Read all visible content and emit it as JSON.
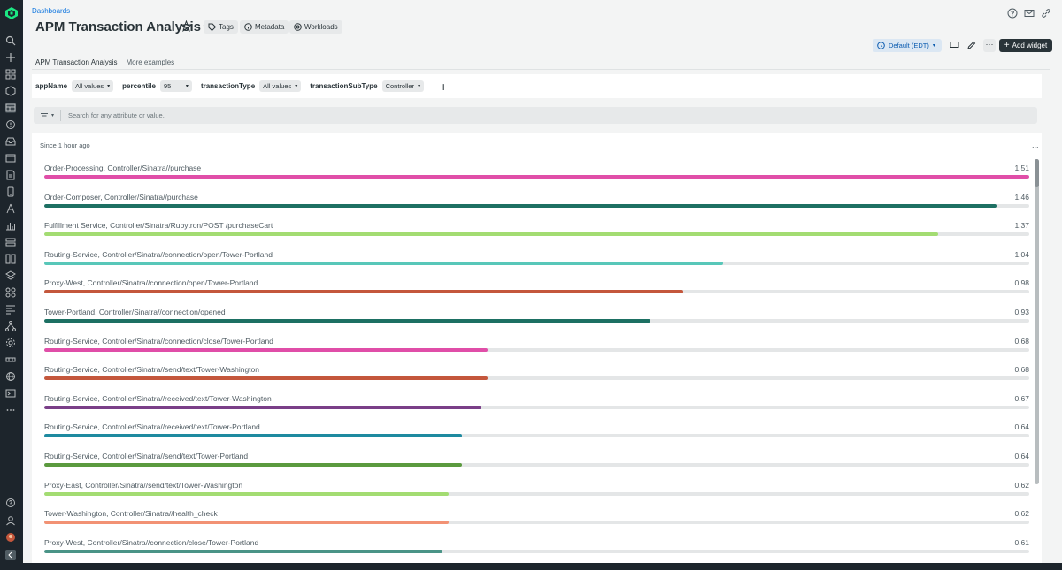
{
  "breadcrumb": "Dashboards",
  "page_title": "APM Transaction Analysis",
  "header_pills": [
    {
      "label": "Tags",
      "icon": "tag-icon"
    },
    {
      "label": "Metadata",
      "icon": "info-icon"
    },
    {
      "label": "Workloads",
      "icon": "workloads-icon"
    }
  ],
  "toolbar": {
    "timezone_label": "Default (EDT)",
    "add_widget_label": "Add widget",
    "more_label": "···"
  },
  "tabs": [
    {
      "label": "APM Transaction Analysis",
      "active": true
    },
    {
      "label": "More examples",
      "active": false
    }
  ],
  "variables": [
    {
      "name": "appName",
      "value": "All values"
    },
    {
      "name": "percentile",
      "value": "95"
    },
    {
      "name": "transactionType",
      "value": "All values"
    },
    {
      "name": "transactionSubType",
      "value": "Controller"
    }
  ],
  "search": {
    "placeholder": "Search for any attribute or value."
  },
  "widget": {
    "since_label": "Since 1 hour ago",
    "more_label": "..."
  },
  "chart_data": {
    "type": "bar",
    "orientation": "horizontal",
    "xlim": [
      0,
      1.51
    ],
    "categories": [
      "Order-Processing, Controller/Sinatra//purchase",
      "Order-Composer, Controller/Sinatra//purchase",
      "Fulfillment Service, Controller/Sinatra/Rubytron/POST /purchaseCart",
      "Routing-Service, Controller/Sinatra//connection/open/Tower-Portland",
      "Proxy-West, Controller/Sinatra//connection/open/Tower-Portland",
      "Tower-Portland, Controller/Sinatra//connection/opened",
      "Routing-Service, Controller/Sinatra//connection/close/Tower-Portland",
      "Routing-Service, Controller/Sinatra//send/text/Tower-Washington",
      "Routing-Service, Controller/Sinatra//received/text/Tower-Washington",
      "Routing-Service, Controller/Sinatra//received/text/Tower-Portland",
      "Routing-Service, Controller/Sinatra//send/text/Tower-Portland",
      "Proxy-East, Controller/Sinatra//send/text/Tower-Washington",
      "Tower-Washington, Controller/Sinatra//health_check",
      "Proxy-West, Controller/Sinatra//connection/close/Tower-Portland"
    ],
    "values": [
      1.51,
      1.46,
      1.37,
      1.04,
      0.98,
      0.93,
      0.68,
      0.68,
      0.67,
      0.64,
      0.64,
      0.62,
      0.62,
      0.61
    ],
    "value_labels": [
      "1.51",
      "1.46",
      "1.37",
      "1.04",
      "0.98",
      "0.93",
      "0.68",
      "0.68",
      "0.67",
      "0.64",
      "0.64",
      "0.62",
      "0.62",
      "0.61"
    ],
    "colors": [
      "#e04ea8",
      "#1d7063",
      "#a3dc72",
      "#58c7b9",
      "#c4573c",
      "#1d7063",
      "#e04ea8",
      "#c4573c",
      "#7a3f88",
      "#1e8aa0",
      "#5b9a3e",
      "#a3dc72",
      "#f29274",
      "#4a9487"
    ]
  }
}
